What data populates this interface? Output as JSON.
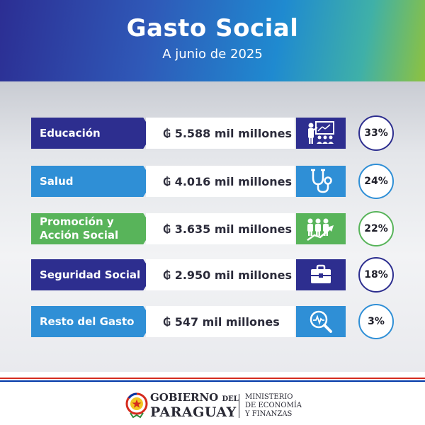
{
  "header": {
    "title": "Gasto Social",
    "subtitle": "A junio de 2025"
  },
  "colors": {
    "dark_blue": "#2d2e8f",
    "light_blue": "#2f8fd6",
    "green": "#58b45a",
    "paraguay_red": "#d52b1e",
    "paraguay_blue": "#0038a8"
  },
  "rows": [
    {
      "label": "Educación",
      "amount": "₲ 5.588 mil millones",
      "percent": "33%",
      "icon": "teacher-classroom-icon",
      "color": "#2d2e8f"
    },
    {
      "label": "Salud",
      "amount": "₲ 4.016 mil millones",
      "percent": "24%",
      "icon": "stethoscope-icon",
      "color": "#2f8fd6"
    },
    {
      "label_line1": "Promoción y",
      "label_line2": "Acción Social",
      "amount": "₲ 3.635 mil millones",
      "percent": "22%",
      "icon": "people-growth-icon",
      "color": "#58b45a"
    },
    {
      "label": "Seguridad Social",
      "amount": "₲ 2.950 mil millones",
      "percent": "18%",
      "icon": "briefcase-icon",
      "color": "#2d2e8f"
    },
    {
      "label": "Resto del Gasto",
      "amount": "₲ 547 mil millones",
      "percent": "3%",
      "icon": "magnifier-pulse-icon",
      "color": "#2f8fd6"
    }
  ],
  "footer": {
    "gobierno_line1": "GOBIERNO",
    "gobierno_del": "DEL",
    "gobierno_line2": "PARAGUAY",
    "ministerio_line1": "MINISTERIO",
    "ministerio_line2": "DE ECONOMÍA",
    "ministerio_line3": "Y FINANZAS"
  }
}
